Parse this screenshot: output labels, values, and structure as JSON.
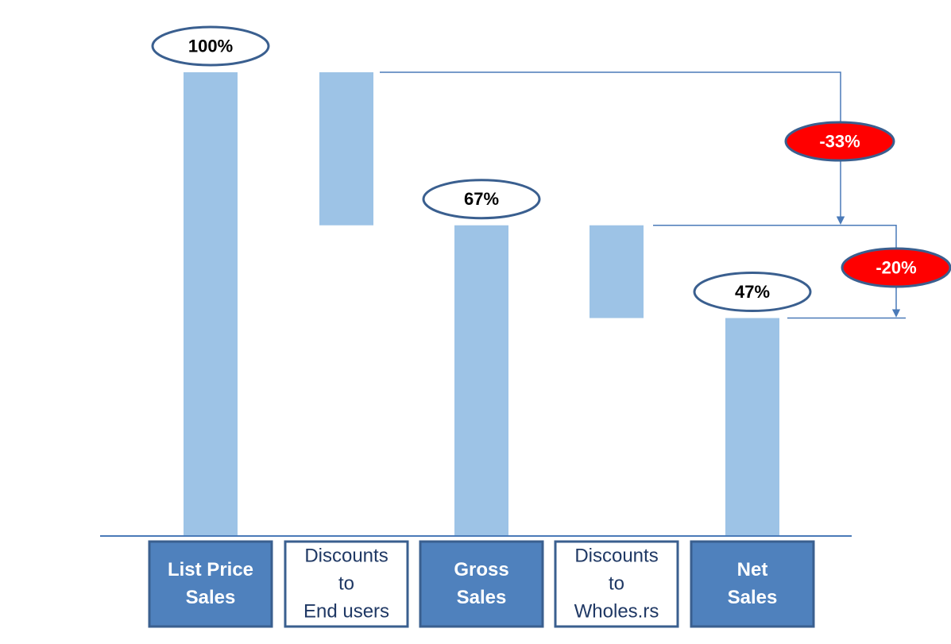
{
  "chart_data": {
    "type": "bar",
    "subtype": "waterfall",
    "title": "",
    "xlabel": "",
    "ylabel": "",
    "ylim": [
      0,
      100
    ],
    "categories": [
      {
        "lines": [
          "List Price",
          "Sales"
        ],
        "kind": "total",
        "start": 0,
        "end": 100,
        "label": "100%"
      },
      {
        "lines": [
          "Discounts",
          "to",
          "End users"
        ],
        "kind": "step",
        "start": 67,
        "end": 100,
        "label": ""
      },
      {
        "lines": [
          "Gross",
          "Sales"
        ],
        "kind": "total",
        "start": 0,
        "end": 67,
        "label": "67%"
      },
      {
        "lines": [
          "Discounts",
          "to",
          "Wholes.rs"
        ],
        "kind": "step",
        "start": 47,
        "end": 67,
        "label": ""
      },
      {
        "lines": [
          "Net",
          "Sales"
        ],
        "kind": "total",
        "start": 0,
        "end": 47,
        "label": "47%"
      }
    ],
    "annotations": [
      {
        "label": "-33%",
        "from": 100,
        "to": 67
      },
      {
        "label": "-20%",
        "from": 67,
        "to": 47
      }
    ],
    "grid": false,
    "legend": "none"
  },
  "colors": {
    "bar_fill": "#9dc3e6",
    "total_box_fill": "#4f81bd",
    "total_box_border": "#3a5f8f",
    "total_box_text": "#ffffff",
    "step_box_fill": "#ffffff",
    "step_box_border": "#3a5f8f",
    "step_box_text": "#1f3864",
    "value_ellipse_fill": "#ffffff",
    "value_ellipse_border": "#3a5f8f",
    "value_text": "#000000",
    "delta_fill": "#ff0000",
    "delta_border": "#3a5f8f",
    "delta_text": "#ffffff",
    "axis": "#4a7ab8",
    "connector": "#4a7ab8"
  }
}
